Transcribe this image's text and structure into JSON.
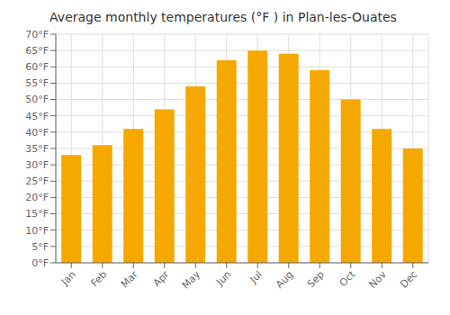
{
  "chart_data": {
    "type": "bar",
    "title": "Average monthly temperatures (°F ) in Plan-les-Ouates",
    "categories": [
      "Jan",
      "Feb",
      "Mar",
      "Apr",
      "May",
      "Jun",
      "Jul",
      "Aug",
      "Sep",
      "Oct",
      "Nov",
      "Dec"
    ],
    "values": [
      33,
      36,
      41,
      47,
      54,
      62,
      65,
      64,
      59,
      50,
      41,
      35
    ],
    "color": "#F5A800",
    "ylim": [
      0,
      70
    ],
    "yticks": [
      {
        "value": 0,
        "label": "0°F"
      },
      {
        "value": 5,
        "label": "5°F"
      },
      {
        "value": 10,
        "label": "10°F"
      },
      {
        "value": 15,
        "label": "15°F"
      },
      {
        "value": 20,
        "label": "20°F"
      },
      {
        "value": 25,
        "label": "25°F"
      },
      {
        "value": 30,
        "label": "30°F"
      },
      {
        "value": 35,
        "label": "35°F"
      },
      {
        "value": 40,
        "label": "40°F"
      },
      {
        "value": 45,
        "label": "45°F"
      },
      {
        "value": 50,
        "label": "50°F"
      },
      {
        "value": 55,
        "label": "55°F"
      },
      {
        "value": 60,
        "label": "60°F"
      },
      {
        "value": 65,
        "label": "65°F"
      },
      {
        "value": 70,
        "label": "70°F"
      }
    ],
    "grid": true
  }
}
